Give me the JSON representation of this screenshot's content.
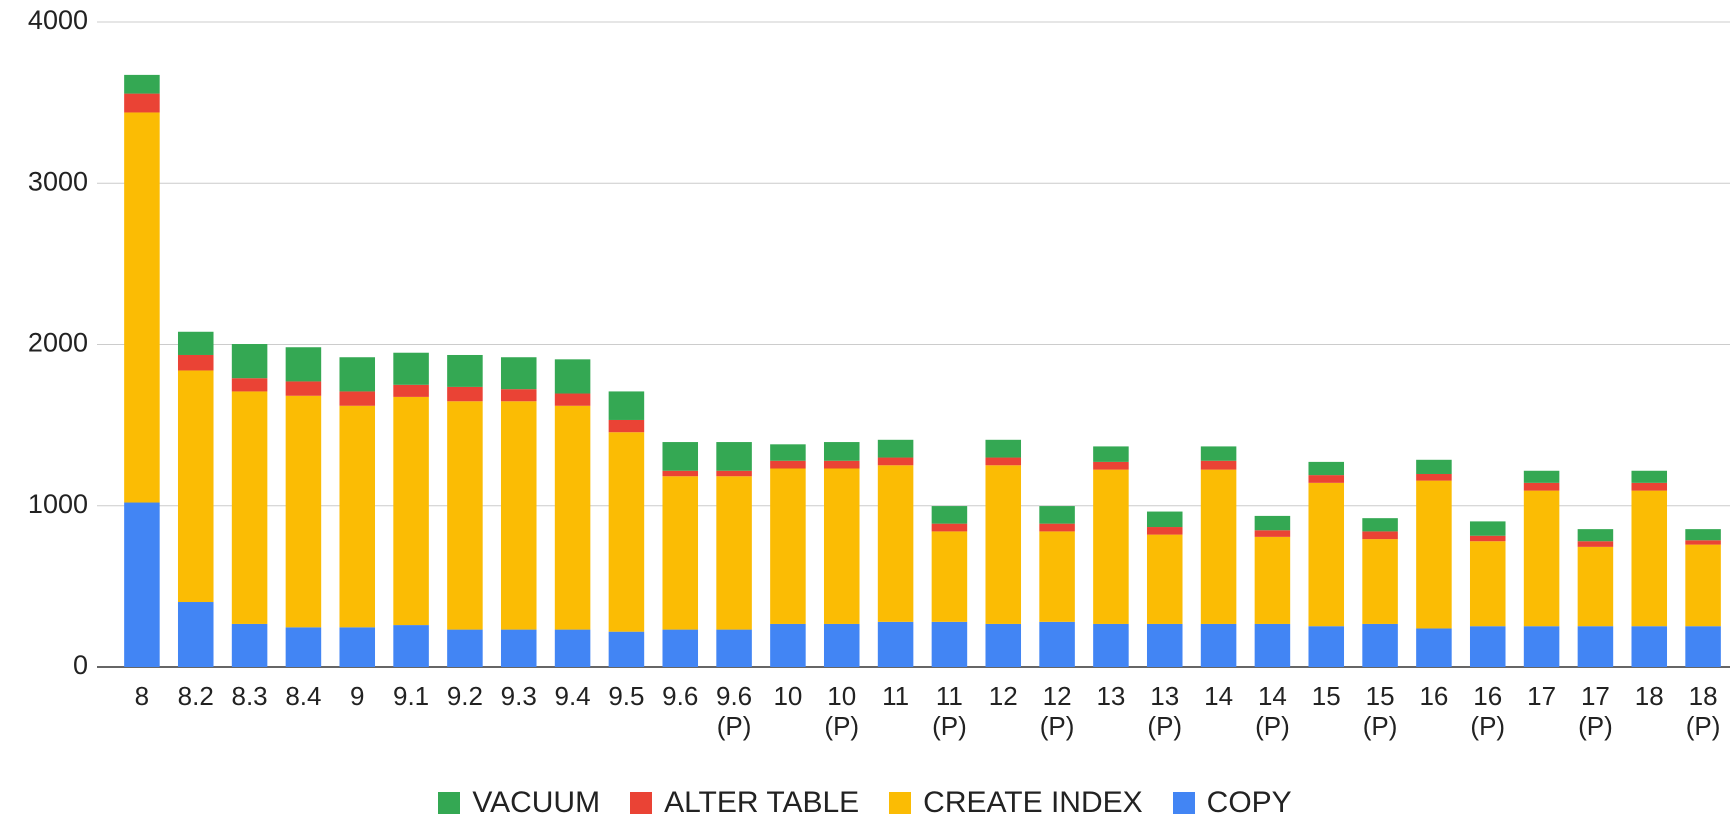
{
  "chart_data": {
    "type": "stacked_bar",
    "categories": [
      "8",
      "8.2",
      "8.3",
      "8.4",
      "9",
      "9.1",
      "9.2",
      "9.3",
      "9.4",
      "9.5",
      "9.6",
      "9.6 (P)",
      "10",
      "10 (P)",
      "11",
      "11 (P)",
      "12",
      "12 (P)",
      "13",
      "13 (P)",
      "14",
      "14 (P)",
      "15",
      "15 (P)",
      "16",
      "16 (P)",
      "17",
      "17 (P)",
      "18",
      "18 (P)"
    ],
    "series": [
      {
        "name": "COPY",
        "color": "#4285f4",
        "values": [
          1020,
          403,
          267,
          246,
          246,
          260,
          232,
          232,
          232,
          219,
          232,
          232,
          267,
          267,
          280,
          280,
          267,
          280,
          267,
          267,
          267,
          267,
          253,
          267,
          239,
          253,
          253,
          253,
          253,
          253
        ]
      },
      {
        "name": "CREATE INDEX",
        "color": "#fbbc04",
        "values": [
          2419,
          1436,
          1442,
          1436,
          1374,
          1415,
          1416,
          1416,
          1388,
          1237,
          951,
          951,
          964,
          964,
          971,
          561,
          984,
          561,
          957,
          554,
          957,
          540,
          889,
          526,
          917,
          527,
          841,
          492,
          841,
          506
        ]
      },
      {
        "name": "ALTER TABLE",
        "color": "#ea4335",
        "values": [
          117,
          96,
          82,
          89,
          89,
          75,
          89,
          75,
          76,
          76,
          34,
          34,
          48,
          48,
          48,
          48,
          48,
          48,
          48,
          47,
          55,
          41,
          48,
          48,
          41,
          34,
          48,
          35,
          48,
          27
        ]
      },
      {
        "name": "VACUUM",
        "color": "#34a853",
        "values": [
          116,
          144,
          212,
          212,
          212,
          199,
          198,
          198,
          212,
          177,
          178,
          178,
          102,
          116,
          110,
          109,
          110,
          109,
          96,
          96,
          89,
          89,
          82,
          82,
          88,
          89,
          75,
          75,
          75,
          69
        ]
      }
    ],
    "ylim": [
      0,
      4000
    ],
    "yticks": [
      0,
      1000,
      2000,
      3000,
      4000
    ],
    "grid": true,
    "legend": "bottom"
  }
}
